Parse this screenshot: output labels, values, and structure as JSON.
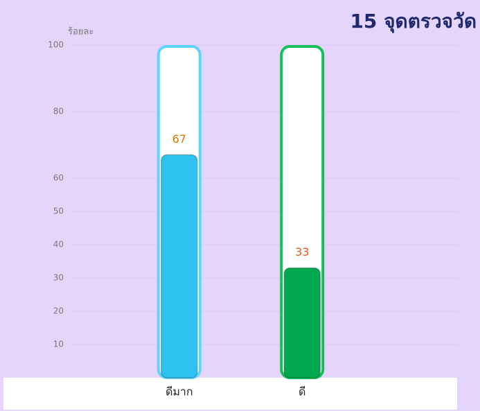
{
  "chart_data": {
    "type": "bar",
    "title": "15 จุดตรวจวัด",
    "ylabel": "ร้อยละ",
    "categories": [
      "ดีมาก",
      "ดี"
    ],
    "values": [
      67,
      33
    ],
    "colors": [
      "#2ec2f0",
      "#00a84f"
    ],
    "outline_colors": [
      "#5fd4ff",
      "#14c05a"
    ],
    "label_colors": [
      "#d07a00",
      "#e85a1a"
    ],
    "ylim": [
      0,
      100
    ],
    "yticks": [
      10,
      20,
      30,
      40,
      50,
      60,
      80,
      100
    ],
    "grid": true
  }
}
